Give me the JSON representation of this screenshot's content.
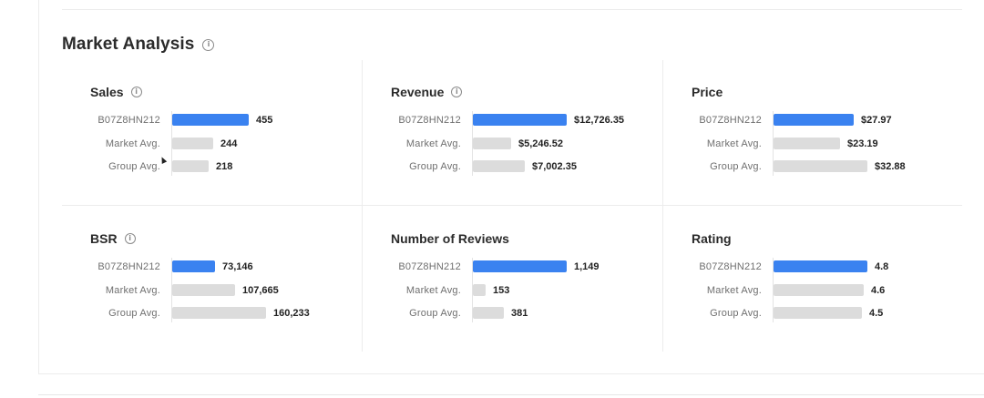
{
  "section": {
    "title": "Market Analysis",
    "info_icon": "info-circle-icon"
  },
  "colors": {
    "primary_bar": "#3a82f0",
    "avg_bar": "#dcdcdc"
  },
  "metrics": [
    {
      "key": "sales",
      "title": "Sales",
      "has_info": true,
      "scale_max": 560,
      "rows": [
        {
          "label": "B07Z8HN212",
          "display": "455",
          "value": 455,
          "primary": true
        },
        {
          "label": "Market Avg.",
          "display": "244",
          "value": 244,
          "primary": false
        },
        {
          "label": "Group Avg.",
          "display": "218",
          "value": 218,
          "primary": false
        }
      ]
    },
    {
      "key": "revenue",
      "title": "Revenue",
      "has_info": true,
      "scale_max": 12726.35,
      "rows": [
        {
          "label": "B07Z8HN212",
          "display": "$12,726.35",
          "value": 12726.35,
          "primary": true
        },
        {
          "label": "Market Avg.",
          "display": "$5,246.52",
          "value": 5246.52,
          "primary": false
        },
        {
          "label": "Group Avg.",
          "display": "$7,002.35",
          "value": 7002.35,
          "primary": false
        }
      ]
    },
    {
      "key": "price",
      "title": "Price",
      "has_info": false,
      "scale_max": 32.88,
      "rows": [
        {
          "label": "B07Z8HN212",
          "display": "$27.97",
          "value": 27.97,
          "primary": true
        },
        {
          "label": "Market Avg.",
          "display": "$23.19",
          "value": 23.19,
          "primary": false
        },
        {
          "label": "Group Avg.",
          "display": "$32.88",
          "value": 32.88,
          "primary": false
        }
      ]
    },
    {
      "key": "bsr",
      "title": "BSR",
      "has_info": true,
      "scale_max": 160233,
      "rows": [
        {
          "label": "B07Z8HN212",
          "display": "73,146",
          "value": 73146,
          "primary": true
        },
        {
          "label": "Market Avg.",
          "display": "107,665",
          "value": 107665,
          "primary": false
        },
        {
          "label": "Group Avg.",
          "display": "160,233",
          "value": 160233,
          "primary": false
        }
      ]
    },
    {
      "key": "reviews",
      "title": "Number of Reviews",
      "has_info": false,
      "scale_max": 1149,
      "rows": [
        {
          "label": "B07Z8HN212",
          "display": "1,149",
          "value": 1149,
          "primary": true
        },
        {
          "label": "Market Avg.",
          "display": "153",
          "value": 153,
          "primary": false
        },
        {
          "label": "Group Avg.",
          "display": "381",
          "value": 381,
          "primary": false
        }
      ]
    },
    {
      "key": "rating",
      "title": "Rating",
      "has_info": false,
      "scale_max": 4.8,
      "rows": [
        {
          "label": "B07Z8HN212",
          "display": "4.8",
          "value": 4.8,
          "primary": true
        },
        {
          "label": "Market Avg.",
          "display": "4.6",
          "value": 4.6,
          "primary": false
        },
        {
          "label": "Group Avg.",
          "display": "4.5",
          "value": 4.5,
          "primary": false
        }
      ]
    }
  ]
}
